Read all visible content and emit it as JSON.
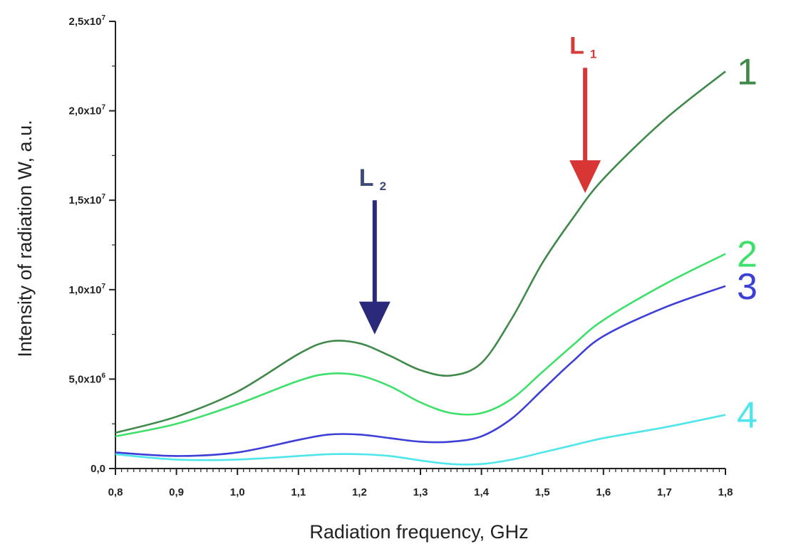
{
  "chart_data": {
    "type": "line",
    "xlabel": "Radiation frequency, GHz",
    "ylabel": "Intensity of radiation W, a.u.",
    "xlim": [
      0.8,
      1.8
    ],
    "ylim": [
      0,
      25000000
    ],
    "x_ticks": [
      "0,8",
      "0,9",
      "1,0",
      "1,1",
      "1,2",
      "1,3",
      "1,4",
      "1,5",
      "1,6",
      "1,7",
      "1,8"
    ],
    "y_ticks": [
      {
        "value": 0,
        "base": "0,0",
        "exp": ""
      },
      {
        "value": 5000000,
        "base": "5,0x10",
        "exp": "6"
      },
      {
        "value": 10000000,
        "base": "1,0x10",
        "exp": "7"
      },
      {
        "value": 15000000,
        "base": "1,5x10",
        "exp": "7"
      },
      {
        "value": 20000000,
        "base": "2,0x10",
        "exp": "7"
      },
      {
        "value": 25000000,
        "base": "2,5x10",
        "exp": "7"
      }
    ],
    "grid": false,
    "series": [
      {
        "name": "1",
        "color": "#3f8a4a",
        "x": [
          0.8,
          0.9,
          1.0,
          1.1,
          1.15,
          1.2,
          1.25,
          1.3,
          1.35,
          1.4,
          1.45,
          1.5,
          1.55,
          1.6,
          1.7,
          1.8
        ],
        "y": [
          2000000,
          2900000,
          4300000,
          6400000,
          7100000,
          7000000,
          6300000,
          5500000,
          5200000,
          5900000,
          8400000,
          11500000,
          14000000,
          16200000,
          19500000,
          22200000
        ]
      },
      {
        "name": "2",
        "color": "#3ee06b",
        "x": [
          0.8,
          0.9,
          1.0,
          1.1,
          1.15,
          1.2,
          1.25,
          1.3,
          1.35,
          1.4,
          1.45,
          1.5,
          1.55,
          1.6,
          1.7,
          1.8
        ],
        "y": [
          1800000,
          2500000,
          3600000,
          4900000,
          5300000,
          5200000,
          4600000,
          3700000,
          3100000,
          3100000,
          3900000,
          5400000,
          6900000,
          8300000,
          10300000,
          12000000
        ]
      },
      {
        "name": "3",
        "color": "#3d3fd6",
        "x": [
          0.8,
          0.9,
          1.0,
          1.1,
          1.15,
          1.2,
          1.25,
          1.3,
          1.35,
          1.4,
          1.45,
          1.5,
          1.55,
          1.6,
          1.7,
          1.8
        ],
        "y": [
          900000,
          700000,
          900000,
          1600000,
          1900000,
          1900000,
          1700000,
          1500000,
          1500000,
          1800000,
          2800000,
          4400000,
          6000000,
          7400000,
          9000000,
          10200000
        ]
      },
      {
        "name": "4",
        "color": "#4ee6ea",
        "x": [
          0.8,
          0.9,
          1.0,
          1.1,
          1.15,
          1.2,
          1.25,
          1.3,
          1.35,
          1.4,
          1.45,
          1.5,
          1.55,
          1.6,
          1.7,
          1.8
        ],
        "y": [
          800000,
          500000,
          500000,
          700000,
          800000,
          800000,
          700000,
          450000,
          250000,
          250000,
          500000,
          900000,
          1300000,
          1700000,
          2300000,
          3000000
        ]
      }
    ],
    "annotations": [
      {
        "label": "L",
        "sub": "2",
        "color": "#3d4a7a",
        "arrow_color": "#2b2a7a",
        "x": 1.225,
        "y_from": 15000000,
        "y_to": 7500000
      },
      {
        "label": "L",
        "sub": "1",
        "color": "#d63a3a",
        "arrow_color": "#d83535",
        "x": 1.57,
        "y_from": 22400000,
        "y_to": 15400000
      }
    ]
  }
}
